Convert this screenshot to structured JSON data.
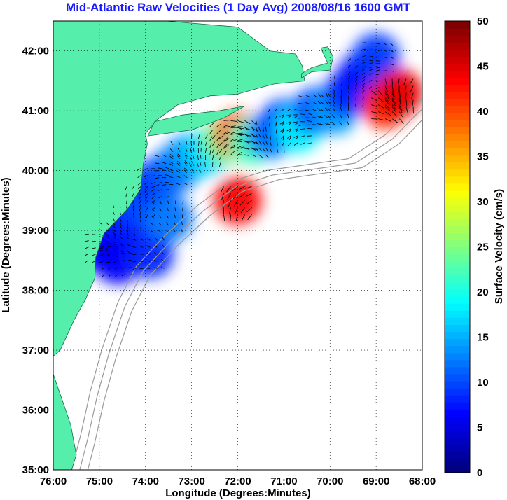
{
  "title": "Mid-Atlantic Raw Velocities (1 Day Avg) 2008/08/16 1600 GMT",
  "colors": {
    "title": "#1a1aff",
    "land": "#55eeaa",
    "coast": "#1a6a4a",
    "bathy": "#9a9a9a",
    "grid": "#000000"
  },
  "chart_data": {
    "type": "heatmap",
    "title": "Mid-Atlantic Raw Velocities (1 Day Avg) 2008/08/16 1600 GMT",
    "xlabel": "Longitude (Degrees:Minutes)",
    "ylabel": "Latitude (Degrees:Minutes)",
    "xlim": [
      -76,
      -68
    ],
    "ylim": [
      35,
      42.5
    ],
    "grid": true,
    "x_ticks": [
      {
        "value": -76,
        "label": "76:00"
      },
      {
        "value": -75,
        "label": "75:00"
      },
      {
        "value": -74,
        "label": "74:00"
      },
      {
        "value": -73,
        "label": "73:00"
      },
      {
        "value": -72,
        "label": "72:00"
      },
      {
        "value": -71,
        "label": "71:00"
      },
      {
        "value": -70,
        "label": "70:00"
      },
      {
        "value": -69,
        "label": "69:00"
      },
      {
        "value": -68,
        "label": "68:00"
      }
    ],
    "y_ticks": [
      {
        "value": 35,
        "label": "35:00"
      },
      {
        "value": 36,
        "label": "36:00"
      },
      {
        "value": 37,
        "label": "37:00"
      },
      {
        "value": 38,
        "label": "38:00"
      },
      {
        "value": 39,
        "label": "39:00"
      },
      {
        "value": 40,
        "label": "40:00"
      },
      {
        "value": 41,
        "label": "41:00"
      },
      {
        "value": 42,
        "label": "42:00"
      }
    ],
    "colorbar": {
      "label": "Surface Velocity (cm/s)",
      "range": [
        0,
        50
      ],
      "colormap": "jet",
      "ticks": [
        {
          "value": 0,
          "label": "0"
        },
        {
          "value": 5,
          "label": "5"
        },
        {
          "value": 10,
          "label": "10"
        },
        {
          "value": 15,
          "label": "15"
        },
        {
          "value": 20,
          "label": "20"
        },
        {
          "value": 25,
          "label": "25"
        },
        {
          "value": 30,
          "label": "30"
        },
        {
          "value": 35,
          "label": "35"
        },
        {
          "value": 40,
          "label": "40"
        },
        {
          "value": 45,
          "label": "45"
        },
        {
          "value": 50,
          "label": "50"
        }
      ]
    },
    "land_polygon": [
      [
        -76.0,
        42.5
      ],
      [
        -73.55,
        42.5
      ],
      [
        -72.0,
        42.4
      ],
      [
        -71.3,
        42.0
      ],
      [
        -70.75,
        41.95
      ],
      [
        -70.6,
        41.75
      ],
      [
        -70.55,
        41.5
      ],
      [
        -71.2,
        41.45
      ],
      [
        -71.45,
        41.4
      ],
      [
        -72.0,
        41.28
      ],
      [
        -72.6,
        41.25
      ],
      [
        -73.3,
        41.1
      ],
      [
        -73.75,
        40.85
      ],
      [
        -74.0,
        40.62
      ],
      [
        -73.96,
        40.45
      ],
      [
        -74.05,
        40.1
      ],
      [
        -74.1,
        39.7
      ],
      [
        -74.4,
        39.35
      ],
      [
        -74.9,
        38.95
      ],
      [
        -75.08,
        38.55
      ],
      [
        -75.1,
        38.2
      ],
      [
        -75.3,
        37.85
      ],
      [
        -75.55,
        37.5
      ],
      [
        -75.85,
        37.0
      ],
      [
        -76.0,
        36.9
      ]
    ],
    "long_island": [
      [
        -73.95,
        40.58
      ],
      [
        -73.0,
        40.68
      ],
      [
        -72.3,
        40.88
      ],
      [
        -71.85,
        41.08
      ],
      [
        -72.4,
        41.0
      ],
      [
        -73.2,
        40.93
      ],
      [
        -73.8,
        40.82
      ]
    ],
    "cape_cod": [
      [
        -70.62,
        41.55
      ],
      [
        -70.4,
        41.65
      ],
      [
        -70.0,
        41.68
      ],
      [
        -69.93,
        41.9
      ],
      [
        -70.05,
        42.07
      ],
      [
        -70.2,
        42.05
      ],
      [
        -70.05,
        41.8
      ],
      [
        -70.4,
        41.72
      ],
      [
        -70.62,
        41.62
      ]
    ],
    "outer_banks": [
      [
        -76.0,
        36.6
      ],
      [
        -75.82,
        36.2
      ],
      [
        -75.62,
        35.75
      ],
      [
        -75.5,
        35.25
      ],
      [
        -75.6,
        35.0
      ],
      [
        -76.0,
        35.0
      ]
    ],
    "velocity_cells": [
      {
        "lon": -75.0,
        "lat": 38.7,
        "v": 7
      },
      {
        "lon": -74.7,
        "lat": 38.9,
        "v": 6
      },
      {
        "lon": -74.4,
        "lat": 39.2,
        "v": 8
      },
      {
        "lon": -74.1,
        "lat": 39.5,
        "v": 10
      },
      {
        "lon": -73.8,
        "lat": 39.8,
        "v": 9
      },
      {
        "lon": -73.4,
        "lat": 40.0,
        "v": 11
      },
      {
        "lon": -73.1,
        "lat": 40.2,
        "v": 13
      },
      {
        "lon": -72.7,
        "lat": 40.3,
        "v": 17
      },
      {
        "lon": -72.3,
        "lat": 40.5,
        "v": 24
      },
      {
        "lon": -72.0,
        "lat": 40.6,
        "v": 40
      },
      {
        "lon": -71.7,
        "lat": 40.5,
        "v": 22
      },
      {
        "lon": -71.3,
        "lat": 40.6,
        "v": 12
      },
      {
        "lon": -71.0,
        "lat": 40.8,
        "v": 9
      },
      {
        "lon": -70.7,
        "lat": 40.7,
        "v": 18
      },
      {
        "lon": -70.3,
        "lat": 41.0,
        "v": 10
      },
      {
        "lon": -69.9,
        "lat": 41.0,
        "v": 14
      },
      {
        "lon": -69.6,
        "lat": 41.3,
        "v": 8
      },
      {
        "lon": -69.3,
        "lat": 41.6,
        "v": 7
      },
      {
        "lon": -69.0,
        "lat": 41.9,
        "v": 9
      },
      {
        "lon": -68.8,
        "lat": 41.1,
        "v": 42
      },
      {
        "lon": -68.5,
        "lat": 41.3,
        "v": 45
      },
      {
        "lon": -72.0,
        "lat": 39.5,
        "v": 44
      },
      {
        "lon": -74.6,
        "lat": 38.5,
        "v": 6
      },
      {
        "lon": -73.9,
        "lat": 38.6,
        "v": 8
      },
      {
        "lon": -73.5,
        "lat": 39.2,
        "v": 12
      }
    ]
  }
}
